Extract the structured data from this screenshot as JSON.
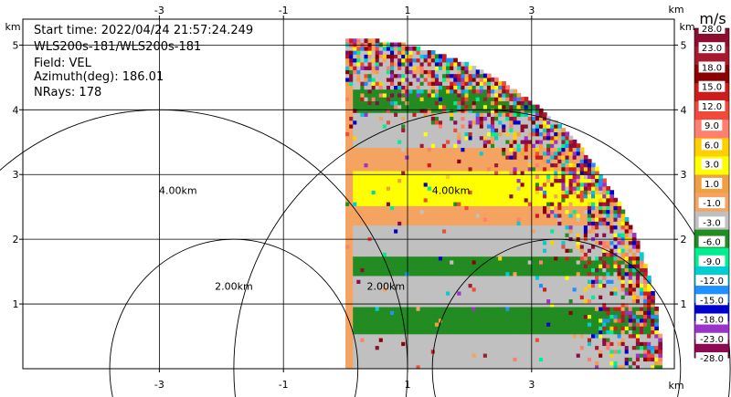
{
  "info": {
    "start_time": "Start time: 2022/04/24 21:57:24.249",
    "instrument": "WLS200s-181/WLS200s-181",
    "field": "Field: VEL",
    "azimuth": "Azimuth(deg): 186.01",
    "nrays": "NRays: 178"
  },
  "colorbar": {
    "title": "m/s",
    "labels": [
      "28.0",
      "23.0",
      "18.0",
      "15.0",
      "12.0",
      "9.0",
      "6.0",
      "3.0",
      "1.0",
      "-1.0",
      "-3.0",
      "-6.0",
      "-9.0",
      "-12.0",
      "-15.0",
      "-18.0",
      "-23.0",
      "-28.0"
    ],
    "colors": [
      "#8b0e2e",
      "#a6192e",
      "#8b0000",
      "#cc1c1c",
      "#f04a3a",
      "#ff7f6f",
      "#ffd000",
      "#ffff00",
      "#f0a040",
      "#f4a460",
      "#c0c0c0",
      "#228b22",
      "#00ee90",
      "#00ced1",
      "#1e90ff",
      "#0000cd",
      "#9933cc",
      "#8b0a50"
    ]
  },
  "chart_data": {
    "type": "heatmap",
    "title": "",
    "xlabel": "km",
    "ylabel": "km",
    "xlim": [
      -5.2,
      5.3
    ],
    "ylim": [
      0,
      5.4
    ],
    "xticks": [
      -3,
      -1,
      1,
      3
    ],
    "yticks": [
      1,
      2,
      3,
      4,
      5
    ],
    "grid": true,
    "range_rings": [
      {
        "radius_km": 2.0,
        "label": "2.00km"
      },
      {
        "radius_km": 4.0,
        "label": "4.00km"
      }
    ],
    "sector": {
      "x_start_km": 0.0,
      "max_range_km": 5.1,
      "angle_start_deg": 0,
      "angle_end_deg": 90
    },
    "velocity_bands": [
      {
        "y_from": 0.0,
        "y_to": 0.55,
        "value": -3.0
      },
      {
        "y_from": 0.55,
        "y_to": 0.95,
        "value": -6.0
      },
      {
        "y_from": 0.95,
        "y_to": 1.45,
        "value": -3.0
      },
      {
        "y_from": 1.45,
        "y_to": 1.75,
        "value": -6.0
      },
      {
        "y_from": 1.75,
        "y_to": 2.25,
        "value": -3.0
      },
      {
        "y_from": 2.25,
        "y_to": 2.55,
        "value": -1.0
      },
      {
        "y_from": 2.55,
        "y_to": 3.05,
        "value": 3.0
      },
      {
        "y_from": 3.05,
        "y_to": 3.45,
        "value": -1.0
      },
      {
        "y_from": 3.45,
        "y_to": 3.95,
        "value": -3.0
      },
      {
        "y_from": 3.95,
        "y_to": 4.35,
        "value": -6.0
      },
      {
        "y_from": 4.35,
        "y_to": 5.1,
        "value": -3.0
      }
    ]
  }
}
